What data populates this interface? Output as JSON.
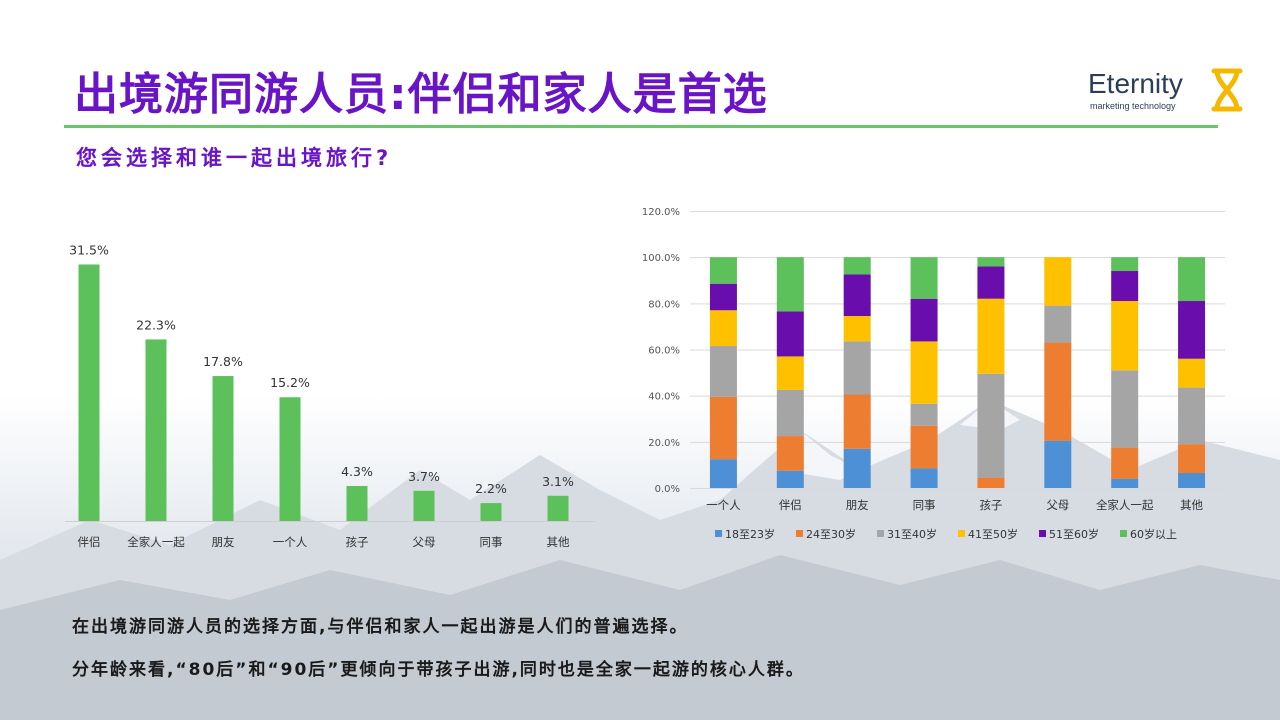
{
  "title": "出境游同游人员:伴侣和家人是首选",
  "subtitle": "您会选择和谁一起出境旅行?",
  "logo": {
    "name": "Eternity",
    "tagline": "marketing technology",
    "mark_color": "#f5b800"
  },
  "colors": {
    "accent": "#6a14c8",
    "rule": "#6cc46a",
    "bar": "#5cc15b"
  },
  "body": {
    "line1": "在出境游同游人员的选择方面,与伴侣和家人一起出游是人们的普遍选择。",
    "line2": "分年龄来看,“80后”和“90后”更倾向于带孩子出游,同时也是全家一起游的核心人群。"
  },
  "chart_data": [
    {
      "type": "bar",
      "categories": [
        "伴侣",
        "全家人一起",
        "朋友",
        "一个人",
        "孩子",
        "父母",
        "同事",
        "其他"
      ],
      "values": [
        31.5,
        22.3,
        17.8,
        15.2,
        4.3,
        3.7,
        2.2,
        3.1
      ],
      "value_labels": [
        "31.5%",
        "22.3%",
        "17.8%",
        "15.2%",
        "4.3%",
        "3.7%",
        "2.2%",
        "3.1%"
      ],
      "color": "#5cc15b",
      "ylim": [
        0,
        35
      ]
    },
    {
      "type": "bar",
      "stacked": true,
      "categories": [
        "一个人",
        "伴侣",
        "朋友",
        "同事",
        "孩子",
        "父母",
        "全家人一起",
        "其他"
      ],
      "yticks": [
        "0.0%",
        "20.0%",
        "40.0%",
        "60.0%",
        "80.0%",
        "100.0%",
        "120.0%"
      ],
      "ylim": [
        0,
        120
      ],
      "grid": true,
      "legend_position": "bottom",
      "series": [
        {
          "name": "18至23岁",
          "color": "#4e90d6",
          "values": [
            12.5,
            7.5,
            17.0,
            8.5,
            0,
            20.5,
            4.0,
            6.5
          ]
        },
        {
          "name": "24至30岁",
          "color": "#ed7d31",
          "values": [
            27.0,
            15.0,
            23.5,
            18.5,
            4.5,
            42.5,
            13.5,
            12.5
          ]
        },
        {
          "name": "31至40岁",
          "color": "#a5a5a5",
          "values": [
            22.0,
            20.0,
            23.0,
            9.5,
            45.0,
            16.0,
            33.5,
            24.5
          ]
        },
        {
          "name": "41至50岁",
          "color": "#ffc000",
          "values": [
            15.5,
            14.5,
            11.0,
            27.0,
            32.5,
            21.0,
            30.0,
            12.5
          ]
        },
        {
          "name": "51至60岁",
          "color": "#6a0dad",
          "values": [
            11.5,
            19.5,
            18.0,
            18.5,
            14.0,
            0,
            13.0,
            25.0
          ]
        },
        {
          "name": "60岁以上",
          "color": "#5cc15b",
          "values": [
            11.5,
            23.5,
            7.5,
            18.0,
            4.0,
            0,
            6.0,
            19.0
          ]
        }
      ]
    }
  ]
}
